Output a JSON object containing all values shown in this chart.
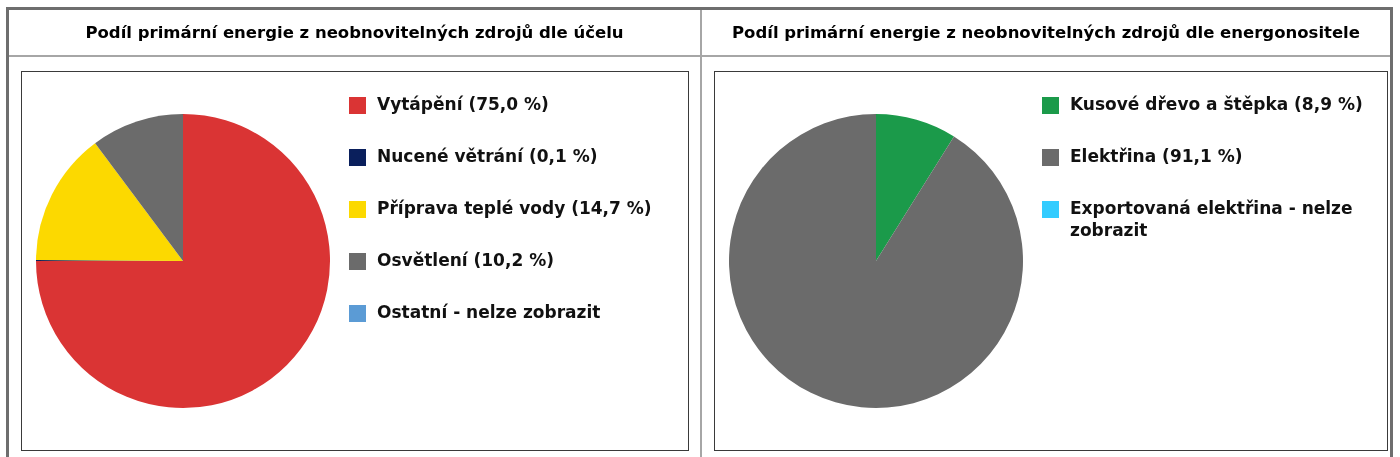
{
  "chart_data": [
    {
      "type": "pie",
      "title": "Podíl primární energie z neobnovitelných zdrojů dle účelu",
      "categories": [
        "Vytápění (75,0 %)",
        "Nucené větrání (0,1 %)",
        "Příprava teplé vody (14,7 %)",
        "Osvětlení (10,2 %)",
        "Ostatní - nelze zobrazit"
      ],
      "values": [
        75.0,
        0.1,
        14.7,
        10.2,
        null
      ],
      "colors": [
        "#da3434",
        "#0a1f5c",
        "#fcd900",
        "#6b6b6b",
        "#5b9bd5"
      ],
      "legend": "right"
    },
    {
      "type": "pie",
      "title": "Podíl primární energie z neobnovitelných zdrojů dle energonositele",
      "categories": [
        "Kusové dřevo a štěpka (8,9 %)",
        "Elektřina (91,1 %)",
        "Exportovaná elektřina - nelze zobrazit"
      ],
      "values": [
        8.9,
        91.1,
        null
      ],
      "colors": [
        "#1b9a4a",
        "#6b6b6b",
        "#33ccff"
      ],
      "legend": "right"
    }
  ]
}
